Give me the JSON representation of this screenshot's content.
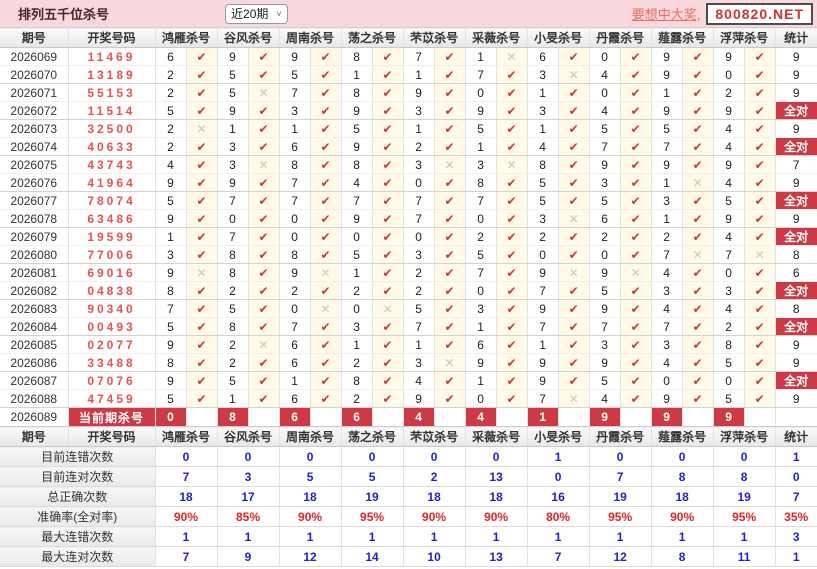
{
  "topbar": {
    "title": "排列五千位杀号",
    "period_filter": "近20期",
    "promo_text": "要想中大奖,",
    "site": "800820.NET"
  },
  "icons": {
    "ok": "✔",
    "bad": "✕",
    "chevron_down": "˅"
  },
  "colors": {
    "accent_red": "#cb3a45",
    "code_red": "#e25550",
    "summary_blue": "#2222c8",
    "summary_red": "#e02424",
    "topbar_pink": "#f8d8dc",
    "check_bg": "#fffbe8"
  },
  "table": {
    "headers": {
      "period": "期号",
      "code": "开奖号码",
      "stat": "统计"
    },
    "experts": [
      "鸿雁杀号",
      "谷风杀号",
      "周南杀号",
      "荡之杀号",
      "芣苡杀号",
      "采薇杀号",
      "小旻杀号",
      "丹霞杀号",
      "薤露杀号",
      "浮萍杀号"
    ],
    "all_correct_label": "全对",
    "rows": [
      {
        "period": "2026069",
        "code": "11469",
        "kills": [
          [
            "6",
            1
          ],
          [
            "9",
            1
          ],
          [
            "9",
            1
          ],
          [
            "8",
            1
          ],
          [
            "7",
            1
          ],
          [
            "1",
            0
          ],
          [
            "6",
            1
          ],
          [
            "0",
            1
          ],
          [
            "9",
            1
          ],
          [
            "9",
            1
          ]
        ],
        "stat": "9"
      },
      {
        "period": "2026070",
        "code": "13189",
        "kills": [
          [
            "2",
            1
          ],
          [
            "5",
            1
          ],
          [
            "5",
            1
          ],
          [
            "1",
            1
          ],
          [
            "1",
            1
          ],
          [
            "7",
            1
          ],
          [
            "3",
            0
          ],
          [
            "4",
            1
          ],
          [
            "9",
            1
          ],
          [
            "0",
            1
          ]
        ],
        "stat": "9"
      },
      {
        "period": "2026071",
        "code": "55153",
        "kills": [
          [
            "2",
            1
          ],
          [
            "5",
            0
          ],
          [
            "7",
            1
          ],
          [
            "8",
            1
          ],
          [
            "9",
            1
          ],
          [
            "0",
            1
          ],
          [
            "1",
            1
          ],
          [
            "0",
            1
          ],
          [
            "1",
            1
          ],
          [
            "2",
            1
          ]
        ],
        "stat": "9"
      },
      {
        "period": "2026072",
        "code": "11514",
        "kills": [
          [
            "5",
            1
          ],
          [
            "9",
            1
          ],
          [
            "3",
            1
          ],
          [
            "9",
            1
          ],
          [
            "3",
            1
          ],
          [
            "9",
            1
          ],
          [
            "3",
            1
          ],
          [
            "4",
            1
          ],
          [
            "9",
            1
          ],
          [
            "9",
            1
          ]
        ],
        "stat": "全对"
      },
      {
        "period": "2026073",
        "code": "32500",
        "kills": [
          [
            "2",
            0
          ],
          [
            "1",
            1
          ],
          [
            "1",
            1
          ],
          [
            "5",
            1
          ],
          [
            "1",
            1
          ],
          [
            "5",
            1
          ],
          [
            "1",
            1
          ],
          [
            "5",
            1
          ],
          [
            "5",
            1
          ],
          [
            "4",
            1
          ]
        ],
        "stat": "9"
      },
      {
        "period": "2026074",
        "code": "40633",
        "kills": [
          [
            "2",
            1
          ],
          [
            "3",
            1
          ],
          [
            "6",
            1
          ],
          [
            "9",
            1
          ],
          [
            "2",
            1
          ],
          [
            "1",
            1
          ],
          [
            "4",
            1
          ],
          [
            "7",
            1
          ],
          [
            "7",
            1
          ],
          [
            "4",
            1
          ]
        ],
        "stat": "全对"
      },
      {
        "period": "2026075",
        "code": "43743",
        "kills": [
          [
            "4",
            1
          ],
          [
            "3",
            0
          ],
          [
            "8",
            1
          ],
          [
            "8",
            1
          ],
          [
            "3",
            0
          ],
          [
            "3",
            0
          ],
          [
            "8",
            1
          ],
          [
            "9",
            1
          ],
          [
            "9",
            1
          ],
          [
            "9",
            1
          ]
        ],
        "stat": "7"
      },
      {
        "period": "2026076",
        "code": "41964",
        "kills": [
          [
            "9",
            1
          ],
          [
            "9",
            1
          ],
          [
            "7",
            1
          ],
          [
            "4",
            1
          ],
          [
            "0",
            1
          ],
          [
            "8",
            1
          ],
          [
            "5",
            1
          ],
          [
            "3",
            1
          ],
          [
            "1",
            0
          ],
          [
            "4",
            1
          ]
        ],
        "stat": "9"
      },
      {
        "period": "2026077",
        "code": "78074",
        "kills": [
          [
            "5",
            1
          ],
          [
            "7",
            1
          ],
          [
            "7",
            1
          ],
          [
            "7",
            1
          ],
          [
            "7",
            1
          ],
          [
            "7",
            1
          ],
          [
            "5",
            1
          ],
          [
            "5",
            1
          ],
          [
            "3",
            1
          ],
          [
            "5",
            1
          ]
        ],
        "stat": "全对"
      },
      {
        "period": "2026078",
        "code": "63486",
        "kills": [
          [
            "9",
            1
          ],
          [
            "0",
            1
          ],
          [
            "0",
            1
          ],
          [
            "9",
            1
          ],
          [
            "7",
            1
          ],
          [
            "0",
            1
          ],
          [
            "3",
            0
          ],
          [
            "6",
            1
          ],
          [
            "1",
            1
          ],
          [
            "9",
            1
          ]
        ],
        "stat": "9"
      },
      {
        "period": "2026079",
        "code": "19599",
        "kills": [
          [
            "1",
            1
          ],
          [
            "7",
            1
          ],
          [
            "0",
            1
          ],
          [
            "0",
            1
          ],
          [
            "0",
            1
          ],
          [
            "2",
            1
          ],
          [
            "2",
            1
          ],
          [
            "2",
            1
          ],
          [
            "2",
            1
          ],
          [
            "4",
            1
          ]
        ],
        "stat": "全对"
      },
      {
        "period": "2026080",
        "code": "77006",
        "kills": [
          [
            "3",
            1
          ],
          [
            "8",
            1
          ],
          [
            "8",
            1
          ],
          [
            "5",
            1
          ],
          [
            "3",
            1
          ],
          [
            "5",
            1
          ],
          [
            "0",
            1
          ],
          [
            "0",
            1
          ],
          [
            "7",
            0
          ],
          [
            "7",
            0
          ]
        ],
        "stat": "8"
      },
      {
        "period": "2026081",
        "code": "69016",
        "kills": [
          [
            "9",
            0
          ],
          [
            "8",
            1
          ],
          [
            "9",
            0
          ],
          [
            "1",
            1
          ],
          [
            "2",
            1
          ],
          [
            "7",
            1
          ],
          [
            "9",
            0
          ],
          [
            "9",
            0
          ],
          [
            "4",
            1
          ],
          [
            "0",
            1
          ]
        ],
        "stat": "6"
      },
      {
        "period": "2026082",
        "code": "04838",
        "kills": [
          [
            "8",
            1
          ],
          [
            "2",
            1
          ],
          [
            "2",
            1
          ],
          [
            "2",
            1
          ],
          [
            "2",
            1
          ],
          [
            "0",
            1
          ],
          [
            "7",
            1
          ],
          [
            "5",
            1
          ],
          [
            "3",
            1
          ],
          [
            "3",
            1
          ]
        ],
        "stat": "全对"
      },
      {
        "period": "2026083",
        "code": "90340",
        "kills": [
          [
            "7",
            1
          ],
          [
            "5",
            1
          ],
          [
            "0",
            0
          ],
          [
            "0",
            0
          ],
          [
            "5",
            1
          ],
          [
            "3",
            1
          ],
          [
            "9",
            1
          ],
          [
            "9",
            1
          ],
          [
            "4",
            1
          ],
          [
            "4",
            1
          ]
        ],
        "stat": "8"
      },
      {
        "period": "2026084",
        "code": "00493",
        "kills": [
          [
            "5",
            1
          ],
          [
            "8",
            1
          ],
          [
            "7",
            1
          ],
          [
            "3",
            1
          ],
          [
            "7",
            1
          ],
          [
            "1",
            1
          ],
          [
            "7",
            1
          ],
          [
            "7",
            1
          ],
          [
            "7",
            1
          ],
          [
            "2",
            1
          ]
        ],
        "stat": "全对"
      },
      {
        "period": "2026085",
        "code": "02077",
        "kills": [
          [
            "9",
            1
          ],
          [
            "2",
            0
          ],
          [
            "6",
            1
          ],
          [
            "1",
            1
          ],
          [
            "1",
            1
          ],
          [
            "6",
            1
          ],
          [
            "1",
            1
          ],
          [
            "3",
            1
          ],
          [
            "3",
            1
          ],
          [
            "8",
            1
          ]
        ],
        "stat": "9"
      },
      {
        "period": "2026086",
        "code": "33488",
        "kills": [
          [
            "8",
            1
          ],
          [
            "2",
            1
          ],
          [
            "6",
            1
          ],
          [
            "2",
            1
          ],
          [
            "3",
            0
          ],
          [
            "9",
            1
          ],
          [
            "9",
            1
          ],
          [
            "9",
            1
          ],
          [
            "4",
            1
          ],
          [
            "5",
            1
          ]
        ],
        "stat": "9"
      },
      {
        "period": "2026087",
        "code": "07076",
        "kills": [
          [
            "9",
            1
          ],
          [
            "5",
            1
          ],
          [
            "1",
            1
          ],
          [
            "8",
            1
          ],
          [
            "4",
            1
          ],
          [
            "1",
            1
          ],
          [
            "9",
            1
          ],
          [
            "5",
            1
          ],
          [
            "0",
            1
          ],
          [
            "0",
            1
          ]
        ],
        "stat": "全对"
      },
      {
        "period": "2026088",
        "code": "47459",
        "kills": [
          [
            "5",
            1
          ],
          [
            "1",
            1
          ],
          [
            "6",
            1
          ],
          [
            "2",
            1
          ],
          [
            "9",
            1
          ],
          [
            "0",
            1
          ],
          [
            "7",
            0
          ],
          [
            "4",
            1
          ],
          [
            "9",
            1
          ],
          [
            "5",
            1
          ]
        ],
        "stat": "9"
      }
    ],
    "current_row": {
      "period": "2026089",
      "label": "当前期杀号",
      "kills": [
        "0",
        "8",
        "6",
        "6",
        "4",
        "4",
        "1",
        "9",
        "9",
        "9"
      ],
      "stat": ""
    },
    "summary": {
      "labels": [
        "目前连错次数",
        "目前连对次数",
        "总正确次数",
        "准确率(全对率)",
        "最大连错次数",
        "最大连对次数"
      ],
      "values": [
        [
          "0",
          "0",
          "0",
          "0",
          "0",
          "0",
          "1",
          "0",
          "0",
          "0",
          "1"
        ],
        [
          "7",
          "3",
          "5",
          "5",
          "2",
          "13",
          "0",
          "7",
          "8",
          "8",
          "0"
        ],
        [
          "18",
          "17",
          "18",
          "19",
          "18",
          "18",
          "16",
          "19",
          "18",
          "19",
          "7"
        ],
        [
          "90%",
          "85%",
          "90%",
          "95%",
          "90%",
          "90%",
          "80%",
          "95%",
          "90%",
          "95%",
          "35%"
        ],
        [
          "1",
          "1",
          "1",
          "1",
          "1",
          "1",
          "1",
          "1",
          "1",
          "1",
          "3"
        ],
        [
          "7",
          "9",
          "12",
          "14",
          "10",
          "13",
          "7",
          "12",
          "8",
          "11",
          "1"
        ]
      ],
      "percent_row_index": 3
    }
  }
}
